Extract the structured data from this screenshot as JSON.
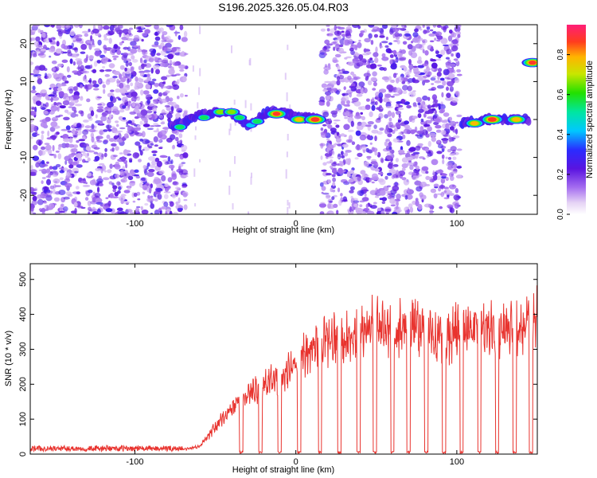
{
  "title": "S196.2025.326.05.04.R03",
  "chart_data": [
    {
      "type": "heatmap",
      "name": "spectrogram",
      "title": "S196.2025.326.05.04.R03",
      "xlabel": "Height of straight line (km)",
      "ylabel": "Frequency (Hz)",
      "xlim": [
        -165,
        150
      ],
      "ylim": [
        -25,
        25
      ],
      "x_ticks": [
        -100,
        0,
        100
      ],
      "x_tick_labels": [
        "-100",
        "0",
        "100"
      ],
      "y_ticks": [
        20,
        10,
        0,
        -10,
        -20
      ],
      "y_tick_labels": [
        "20",
        "10",
        "0",
        "-10",
        "-20"
      ],
      "noise_regions_km": [
        [
          -165,
          -68
        ],
        [
          16,
          102
        ]
      ],
      "signal_track": {
        "x_km": [
          -78,
          -72,
          -65,
          -55,
          -48,
          -40,
          -35,
          -30,
          -25,
          -18,
          -12,
          -5,
          0,
          5,
          10,
          16
        ],
        "freq_hz": [
          -1.5,
          -1.5,
          0.5,
          1.5,
          2,
          1.5,
          0.5,
          -1.5,
          -0.5,
          2,
          2,
          1.5,
          0.5,
          0.5,
          0.5,
          0
        ],
        "x2_km": [
          103,
          110,
          118,
          125,
          133,
          140,
          145
        ],
        "freq2_hz": [
          -1,
          -0.5,
          0,
          0,
          0,
          0.5,
          0
        ]
      },
      "peaks": [
        {
          "x": -72,
          "y": -2,
          "amp": 0.6
        },
        {
          "x": -57,
          "y": 0.5,
          "amp": 0.6
        },
        {
          "x": -47,
          "y": 2,
          "amp": 0.7
        },
        {
          "x": -40,
          "y": 2,
          "amp": 0.7
        },
        {
          "x": -35,
          "y": 0.5,
          "amp": 0.6
        },
        {
          "x": -28,
          "y": -1.5,
          "amp": 0.5
        },
        {
          "x": -24,
          "y": -0.5,
          "amp": 0.6
        },
        {
          "x": -12,
          "y": 1.5,
          "amp": 0.9
        },
        {
          "x": 2,
          "y": 0,
          "amp": 0.8
        },
        {
          "x": 12,
          "y": 0,
          "amp": 0.95
        },
        {
          "x": 111,
          "y": -1,
          "amp": 0.8
        },
        {
          "x": 122,
          "y": 0,
          "amp": 0.95
        },
        {
          "x": 137,
          "y": 0,
          "amp": 0.85
        },
        {
          "x": 147,
          "y": 15,
          "amp": 0.9
        }
      ],
      "colorbar": {
        "label": "Normalized spectral amplitude",
        "range": [
          0,
          0.95
        ],
        "ticks": [
          0.0,
          0.2,
          0.4,
          0.6,
          0.8
        ],
        "tick_labels": [
          "0.0",
          "0.2",
          "0.4",
          "0.6",
          "0.8"
        ]
      }
    },
    {
      "type": "line",
      "name": "snr",
      "xlabel": "Height of straight line (km)",
      "ylabel": "SNR (10 * v/v)",
      "xlim": [
        -165,
        150
      ],
      "ylim": [
        0,
        545
      ],
      "x_ticks": [
        -100,
        0,
        100
      ],
      "x_tick_labels": [
        "-100",
        "0",
        "100"
      ],
      "y_ticks": [
        0,
        100,
        200,
        300,
        400,
        500
      ],
      "y_tick_labels": [
        "0",
        "100",
        "200",
        "300",
        "400",
        "500"
      ],
      "color": "#e8332e",
      "envelope": {
        "x": [
          -165,
          -70,
          -60,
          -50,
          -40,
          -30,
          -20,
          -10,
          0,
          10,
          20,
          30,
          40,
          50,
          60,
          70,
          80,
          90,
          100,
          110,
          120,
          130,
          140,
          150
        ],
        "y": [
          15,
          15,
          25,
          90,
          150,
          200,
          230,
          260,
          310,
          360,
          380,
          380,
          410,
          440,
          400,
          430,
          420,
          380,
          410,
          430,
          420,
          400,
          430,
          470
        ]
      },
      "dropouts_km": [
        -34,
        -22,
        -10,
        2,
        15,
        27,
        39,
        49,
        60,
        70,
        81,
        92,
        103,
        114,
        125,
        136,
        146
      ]
    }
  ]
}
